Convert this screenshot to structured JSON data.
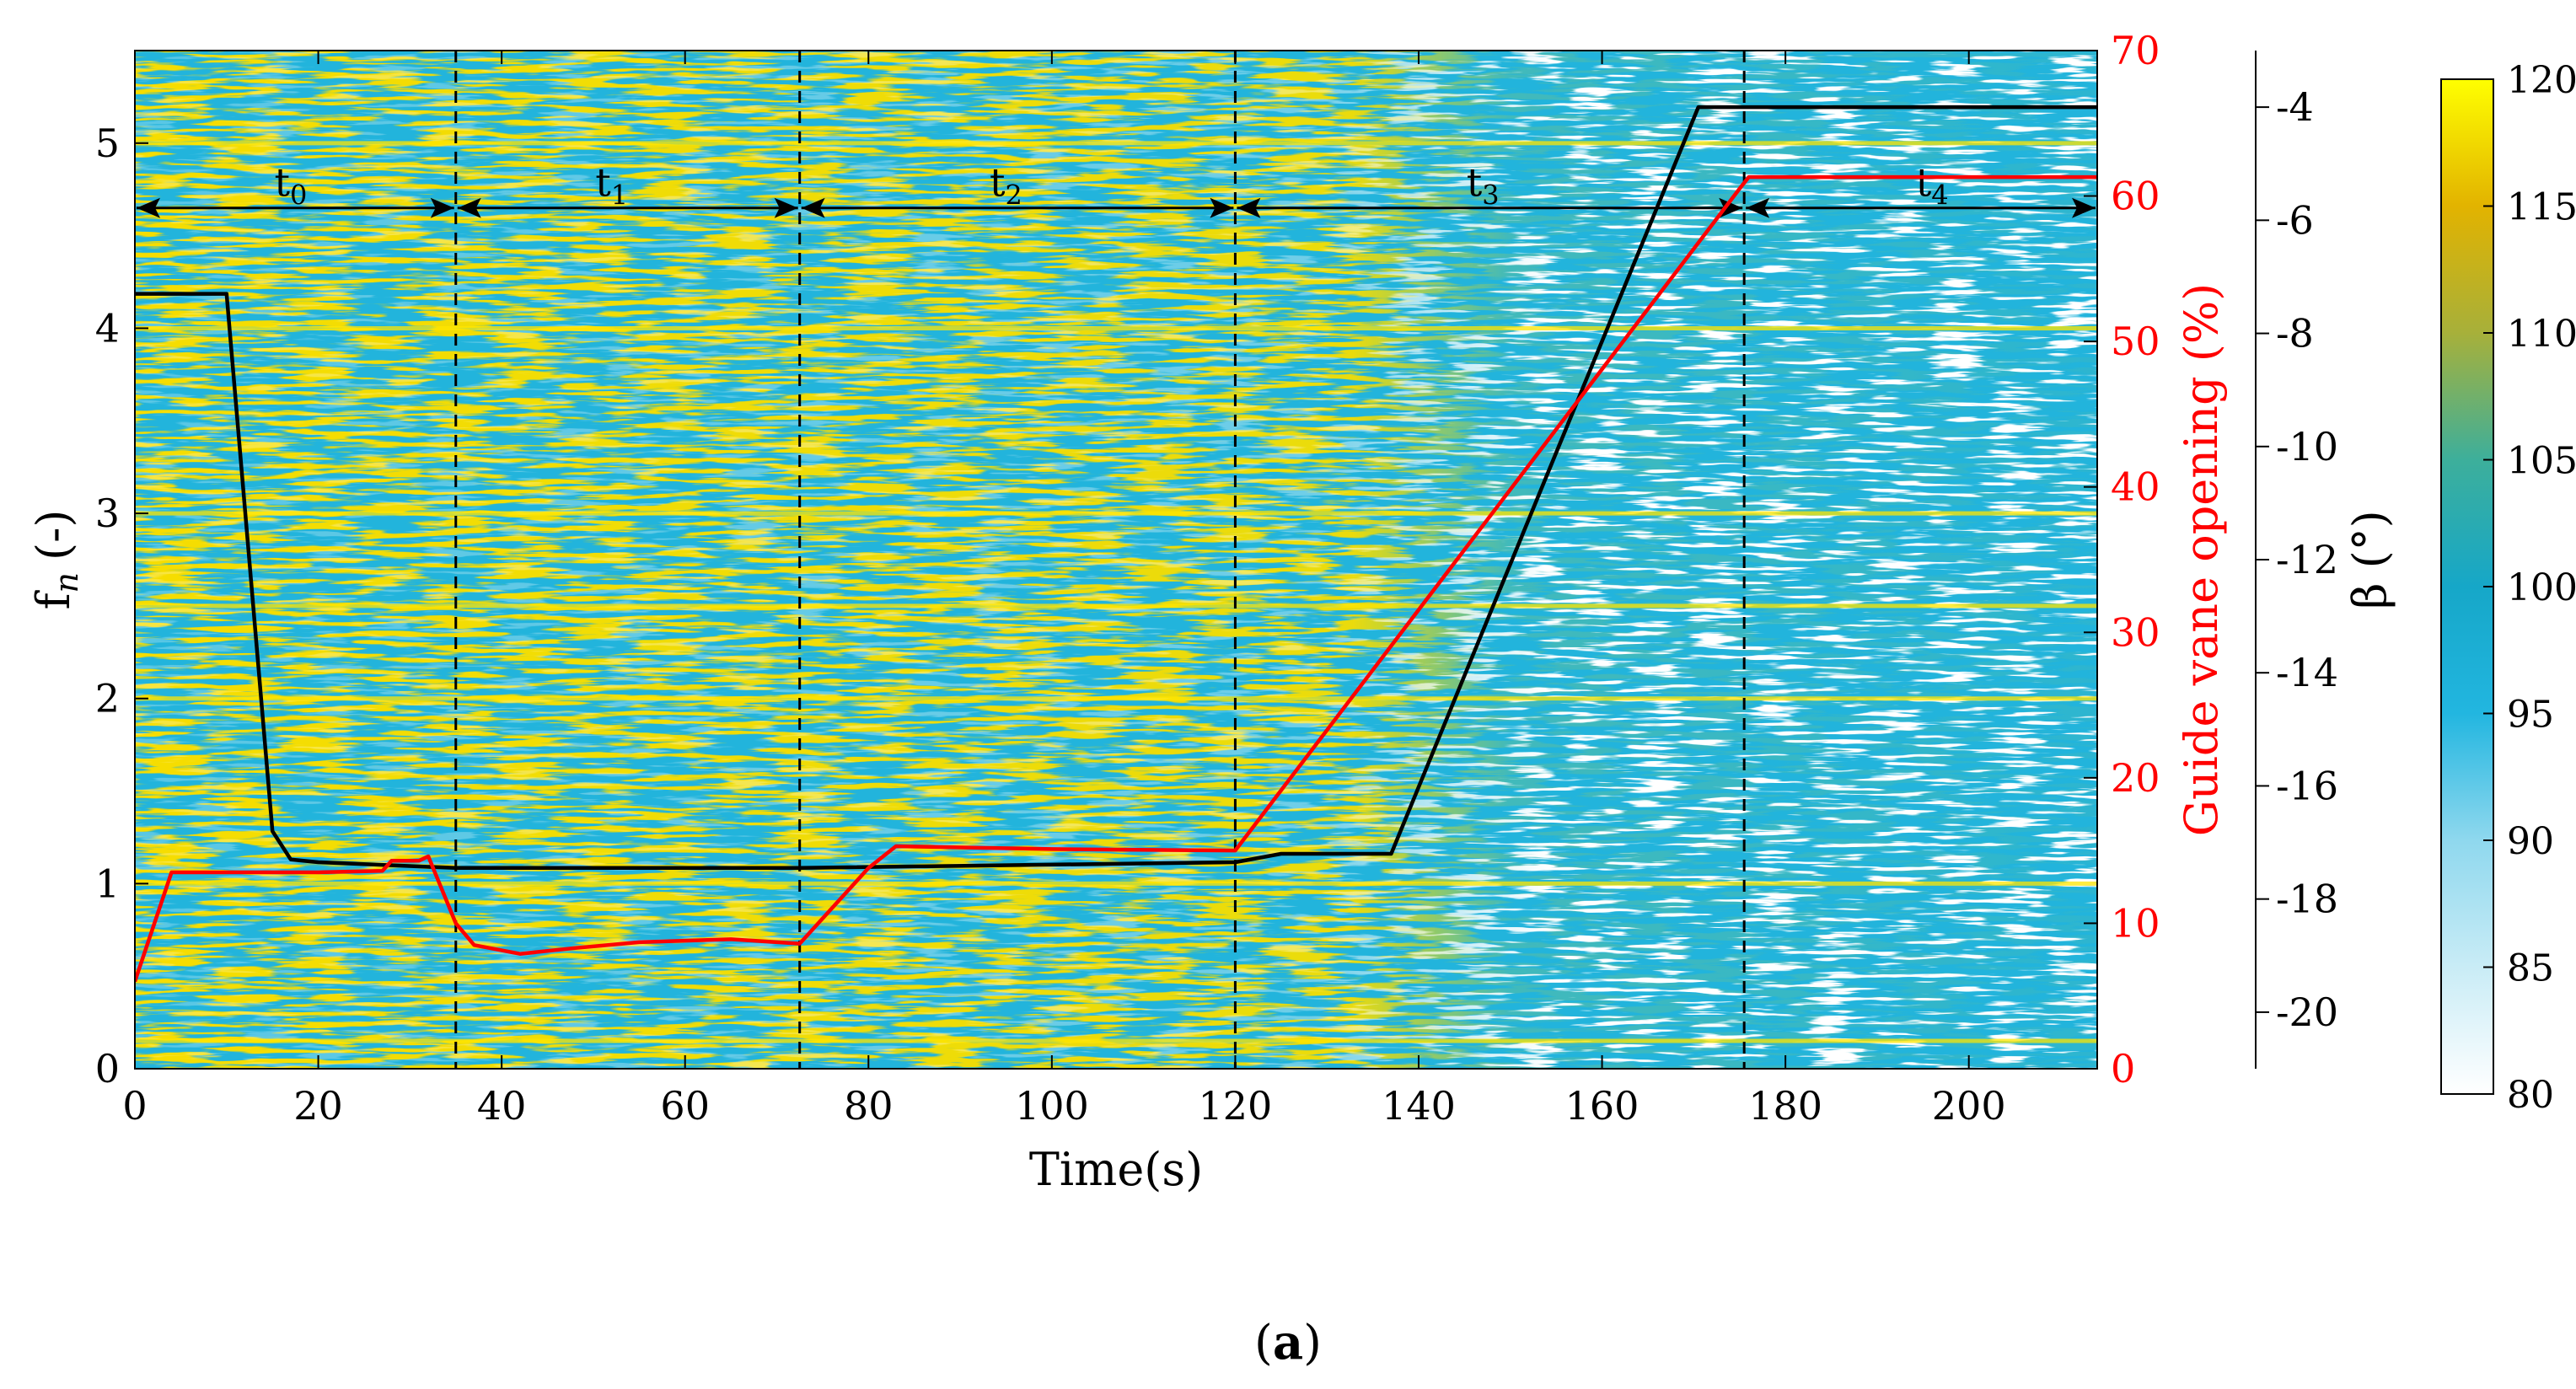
{
  "chart_data": {
    "type": "heatmap",
    "panel_label_open": "(",
    "panel_label_letter": "a",
    "panel_label_close": ")",
    "xlabel": "Time(s)",
    "xlim": [
      0,
      214
    ],
    "x_ticks": [
      0,
      20,
      40,
      60,
      80,
      100,
      120,
      140,
      160,
      180,
      200
    ],
    "ylabel_main": "f",
    "ylabel_sub": "n",
    "ylabel_unit": "(-)",
    "ylim": [
      0,
      5.5
    ],
    "y_ticks": [
      0,
      1,
      2,
      3,
      4,
      5
    ],
    "y2_label": "Guide vane opening (%)",
    "y2_color": "#ff0000",
    "y2lim": [
      0,
      70
    ],
    "y2_ticks": [
      0,
      10,
      20,
      30,
      40,
      50,
      60,
      70
    ],
    "y3_label": "β (°)",
    "y3lim": [
      -21,
      -3
    ],
    "y3_ticks": [
      -20,
      -18,
      -16,
      -14,
      -12,
      -10,
      -8,
      -6,
      -4
    ],
    "colorbar": {
      "range": [
        80,
        120
      ],
      "ticks": [
        80,
        85,
        90,
        95,
        100,
        105,
        110,
        115,
        120
      ],
      "colors": [
        "#ffffff",
        "#c9ecf6",
        "#8fd8ee",
        "#22b6e0",
        "#16a7c8",
        "#3daf9b",
        "#a7b03a",
        "#e2b300",
        "#ffff00"
      ]
    },
    "harmonic_lines_fn": [
      0.15,
      1.0,
      2.0,
      2.5,
      3.0,
      4.0,
      5.0
    ],
    "phases": {
      "boundaries_s": [
        35,
        72.5,
        120,
        175.5
      ],
      "arrow_y_fn": 4.65,
      "labels": [
        {
          "main": "t",
          "sub": "0",
          "x": 17
        },
        {
          "main": "t",
          "sub": "1",
          "x": 52
        },
        {
          "main": "t",
          "sub": "2",
          "x": 95
        },
        {
          "main": "t",
          "sub": "3",
          "x": 147
        },
        {
          "main": "t",
          "sub": "4",
          "x": 196
        }
      ],
      "arrow_color": "#000000",
      "divider_color": "#000000"
    },
    "series": [
      {
        "role": "beta",
        "color": "#000000",
        "axis": "y3",
        "x": [
          0,
          10,
          15,
          17,
          20,
          35,
          72.5,
          120,
          125,
          137,
          170.5,
          214
        ],
        "y": [
          -7.3,
          -7.3,
          -16.8,
          -17.3,
          -17.35,
          -17.45,
          -17.45,
          -17.35,
          -17.2,
          -17.2,
          -4.0,
          -4.0
        ]
      },
      {
        "role": "guide_vane_opening",
        "color": "#ff0000",
        "axis": "y2",
        "x": [
          0,
          4,
          20,
          27,
          28,
          31,
          32,
          35,
          37,
          42,
          48,
          55,
          65,
          72.5,
          80,
          83,
          100,
          120,
          175,
          176,
          214
        ],
        "y": [
          6,
          13.5,
          13.5,
          13.6,
          14.3,
          14.3,
          14.6,
          10,
          8.5,
          7.9,
          8.3,
          8.7,
          8.9,
          8.6,
          13.8,
          15.3,
          15.1,
          15.0,
          60.5,
          61.3,
          61.3
        ]
      }
    ]
  }
}
